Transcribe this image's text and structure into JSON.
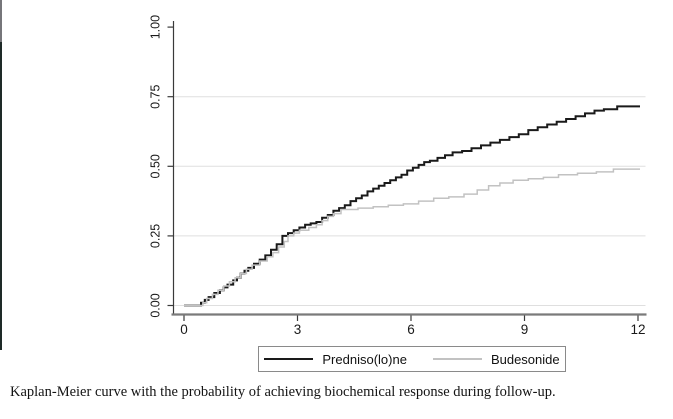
{
  "figure": {
    "caption": "Kaplan-Meier curve with the probability of achieving biochemical response during follow-up."
  },
  "colors": {
    "axis": "#3a3a3a",
    "x_axis_line": "#7a7a7a",
    "gridline": "#dfdfdf",
    "tick_label": "#1a1a1a",
    "series_prednisolone": "#1a1a1a",
    "series_budesonide": "#c2c2c2",
    "legend_border": "#8a8a8a"
  },
  "chart_data": {
    "type": "line",
    "subtype": "kaplan-meier-step",
    "title": "",
    "xlabel": "",
    "ylabel": "",
    "xlim": [
      0,
      12
    ],
    "ylim": [
      0,
      1
    ],
    "x_ticks": [
      0,
      3,
      6,
      9,
      12
    ],
    "y_ticks": [
      "0.00",
      "0.25",
      "0.50",
      "0.75",
      "1.00"
    ],
    "grid": "horizontal at 0.00, 0.25, 0.50, 0.75",
    "legend_position": "bottom-center boxed",
    "series": [
      {
        "name": "Predniso(lo)ne",
        "color": "#1a1a1a",
        "stroke_width": 2,
        "points": [
          [
            0,
            0
          ],
          [
            0.45,
            0.01
          ],
          [
            0.55,
            0.02
          ],
          [
            0.65,
            0.03
          ],
          [
            0.8,
            0.045
          ],
          [
            0.95,
            0.055
          ],
          [
            1.05,
            0.065
          ],
          [
            1.15,
            0.075
          ],
          [
            1.3,
            0.09
          ],
          [
            1.4,
            0.1
          ],
          [
            1.5,
            0.115
          ],
          [
            1.6,
            0.125
          ],
          [
            1.7,
            0.135
          ],
          [
            1.85,
            0.15
          ],
          [
            2.0,
            0.165
          ],
          [
            2.15,
            0.18
          ],
          [
            2.3,
            0.2
          ],
          [
            2.45,
            0.22
          ],
          [
            2.6,
            0.25
          ],
          [
            2.75,
            0.26
          ],
          [
            2.9,
            0.27
          ],
          [
            3.05,
            0.28
          ],
          [
            3.2,
            0.29
          ],
          [
            3.35,
            0.295
          ],
          [
            3.5,
            0.3
          ],
          [
            3.65,
            0.315
          ],
          [
            3.8,
            0.325
          ],
          [
            3.95,
            0.34
          ],
          [
            4.1,
            0.35
          ],
          [
            4.25,
            0.36
          ],
          [
            4.4,
            0.375
          ],
          [
            4.55,
            0.385
          ],
          [
            4.7,
            0.395
          ],
          [
            4.85,
            0.41
          ],
          [
            5.0,
            0.42
          ],
          [
            5.15,
            0.43
          ],
          [
            5.3,
            0.44
          ],
          [
            5.45,
            0.45
          ],
          [
            5.6,
            0.46
          ],
          [
            5.75,
            0.47
          ],
          [
            5.9,
            0.485
          ],
          [
            6.05,
            0.495
          ],
          [
            6.2,
            0.505
          ],
          [
            6.35,
            0.515
          ],
          [
            6.5,
            0.52
          ],
          [
            6.7,
            0.53
          ],
          [
            6.9,
            0.54
          ],
          [
            7.1,
            0.55
          ],
          [
            7.35,
            0.555
          ],
          [
            7.6,
            0.565
          ],
          [
            7.85,
            0.575
          ],
          [
            8.1,
            0.585
          ],
          [
            8.35,
            0.595
          ],
          [
            8.6,
            0.605
          ],
          [
            8.85,
            0.615
          ],
          [
            9.1,
            0.63
          ],
          [
            9.35,
            0.64
          ],
          [
            9.6,
            0.65
          ],
          [
            9.85,
            0.66
          ],
          [
            10.1,
            0.67
          ],
          [
            10.35,
            0.68
          ],
          [
            10.6,
            0.69
          ],
          [
            10.85,
            0.7
          ],
          [
            11.1,
            0.705
          ],
          [
            11.45,
            0.715
          ],
          [
            12,
            0.715
          ]
        ]
      },
      {
        "name": "Budesonide",
        "color": "#c2c2c2",
        "stroke_width": 1.5,
        "points": [
          [
            0,
            0
          ],
          [
            0.5,
            0.01
          ],
          [
            0.6,
            0.025
          ],
          [
            0.75,
            0.04
          ],
          [
            0.9,
            0.055
          ],
          [
            1.05,
            0.07
          ],
          [
            1.2,
            0.085
          ],
          [
            1.35,
            0.1
          ],
          [
            1.5,
            0.115
          ],
          [
            1.65,
            0.13
          ],
          [
            1.8,
            0.145
          ],
          [
            2.0,
            0.16
          ],
          [
            2.2,
            0.175
          ],
          [
            2.35,
            0.19
          ],
          [
            2.5,
            0.21
          ],
          [
            2.65,
            0.23
          ],
          [
            2.75,
            0.25
          ],
          [
            2.9,
            0.26
          ],
          [
            3.05,
            0.27
          ],
          [
            3.3,
            0.28
          ],
          [
            3.5,
            0.29
          ],
          [
            3.65,
            0.305
          ],
          [
            3.8,
            0.32
          ],
          [
            3.95,
            0.33
          ],
          [
            4.15,
            0.345
          ],
          [
            4.6,
            0.35
          ],
          [
            5.0,
            0.355
          ],
          [
            5.4,
            0.36
          ],
          [
            5.8,
            0.365
          ],
          [
            6.2,
            0.375
          ],
          [
            6.6,
            0.385
          ],
          [
            7.0,
            0.39
          ],
          [
            7.4,
            0.4
          ],
          [
            7.75,
            0.415
          ],
          [
            8.05,
            0.43
          ],
          [
            8.35,
            0.44
          ],
          [
            8.7,
            0.45
          ],
          [
            9.1,
            0.455
          ],
          [
            9.5,
            0.46
          ],
          [
            9.9,
            0.47
          ],
          [
            10.4,
            0.475
          ],
          [
            10.9,
            0.48
          ],
          [
            11.35,
            0.49
          ],
          [
            12,
            0.49
          ]
        ]
      }
    ]
  }
}
